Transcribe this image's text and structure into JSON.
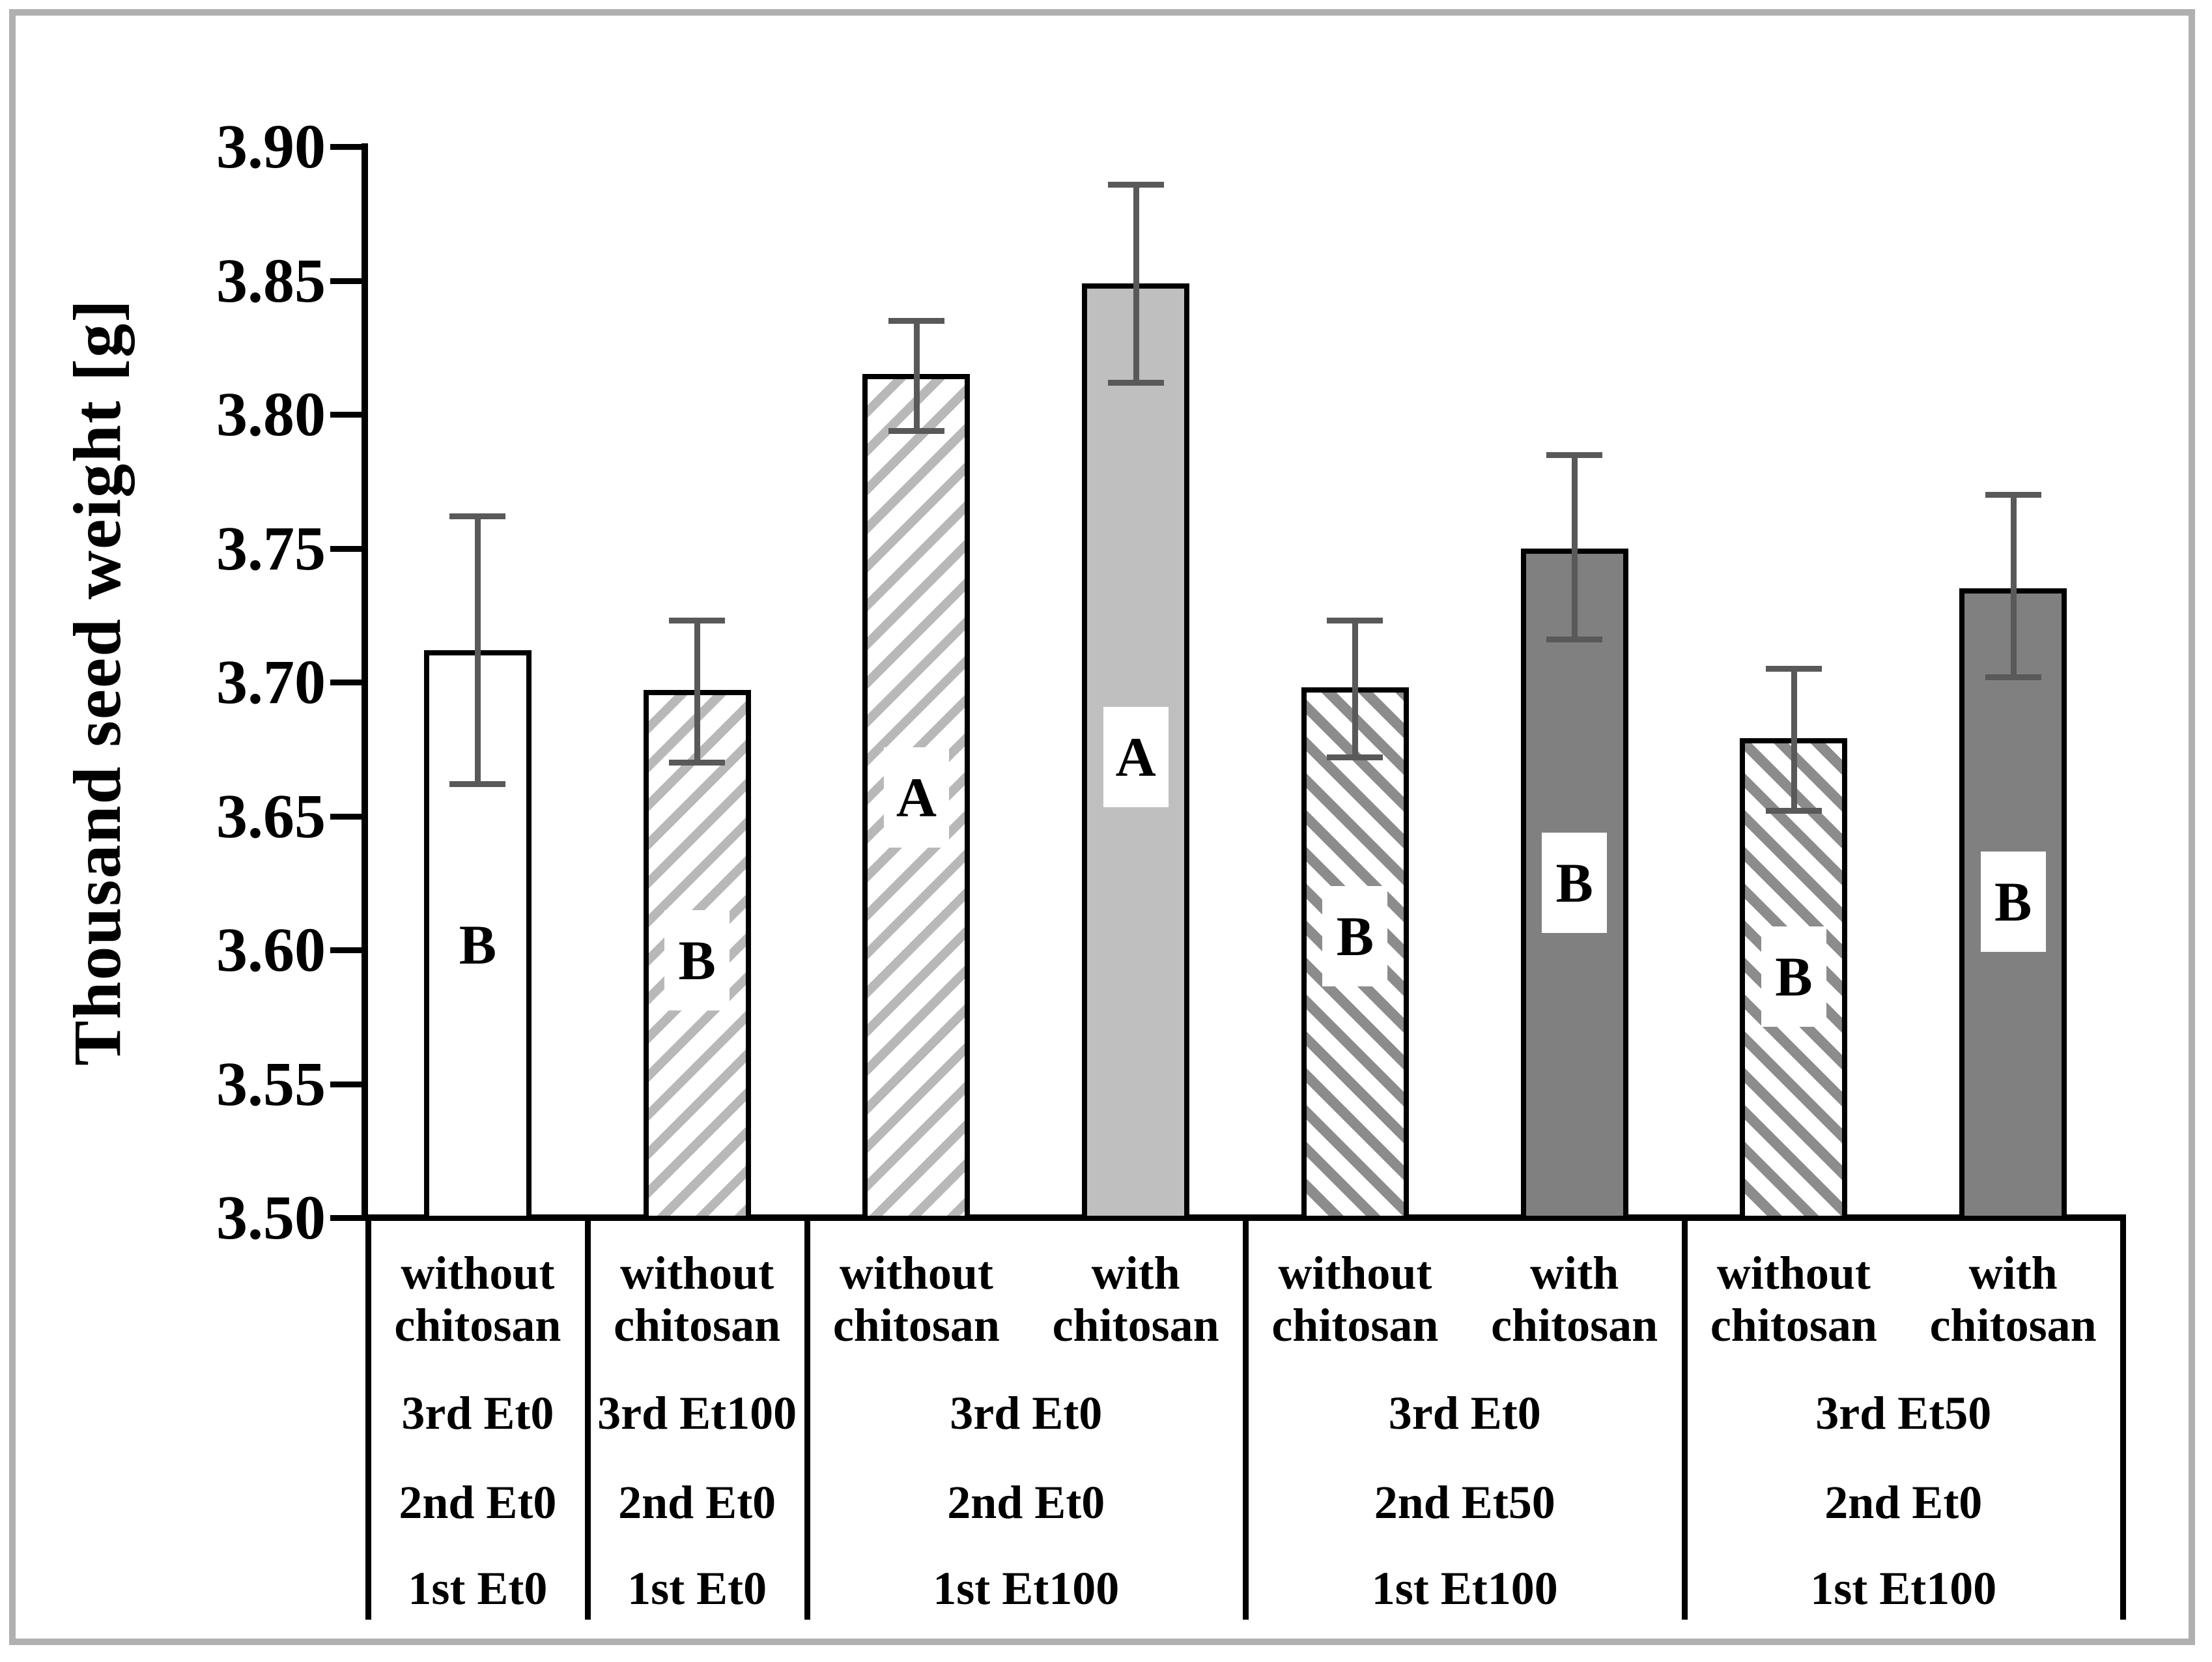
{
  "figure": {
    "background": "#ffffff",
    "border_color": "#b0b0b0"
  },
  "colors": {
    "bar_outline": "#000000",
    "bar_white": "#ffffff",
    "bar_light_gray": "#bfbfbf",
    "bar_dark_gray": "#808080",
    "hatch_light_stripe": "#b8b8b8",
    "hatch_dark_stripe": "#8c8c8c",
    "error_bar": "#595959",
    "axis": "#000000",
    "text": "#000000"
  },
  "chart_data": {
    "type": "bar",
    "title": "",
    "xlabel": "",
    "ylabel": "Thousand seed weight [g]",
    "ylim": [
      3.5,
      3.9
    ],
    "ytick_step": 0.05,
    "ytick_labels": [
      "3.90",
      "3.85",
      "3.80",
      "3.75",
      "3.70",
      "3.65",
      "3.60",
      "3.55",
      "3.50"
    ],
    "grid": false,
    "legend": false,
    "error_bars": "two-sided with caps",
    "groups": [
      {
        "chitosan_labels": [
          "without chitosan"
        ],
        "treatments": [
          "3rd Et0",
          "2nd Et0",
          "1st Et0"
        ],
        "bars": [
          {
            "condition": "without chitosan",
            "value": 3.712,
            "err_low": 3.662,
            "err_high": 3.762,
            "letter": "B",
            "letter_at": 3.602,
            "fill": "white"
          }
        ]
      },
      {
        "chitosan_labels": [
          "without chitosan"
        ],
        "treatments": [
          "3rd Et100",
          "2nd Et0",
          "1st Et0"
        ],
        "bars": [
          {
            "condition": "without chitosan",
            "value": 3.697,
            "err_low": 3.67,
            "err_high": 3.723,
            "letter": "B",
            "letter_at": 3.596,
            "fill": "hatch-light"
          }
        ]
      },
      {
        "chitosan_labels": [
          "without chitosan",
          "with chitosan"
        ],
        "treatments": [
          "3rd Et0",
          "2nd Et0",
          "1st Et100"
        ],
        "bars": [
          {
            "condition": "without chitosan",
            "value": 3.815,
            "err_low": 3.794,
            "err_high": 3.835,
            "letter": "A",
            "letter_at": 3.657,
            "fill": "hatch-light"
          },
          {
            "condition": "with chitosan",
            "value": 3.849,
            "err_low": 3.812,
            "err_high": 3.886,
            "letter": "A",
            "letter_at": 3.672,
            "fill": "gray-light"
          }
        ]
      },
      {
        "chitosan_labels": [
          "without chitosan",
          "with chitosan"
        ],
        "treatments": [
          "3rd Et0",
          "2nd Et50",
          "1st Et100"
        ],
        "bars": [
          {
            "condition": "without chitosan",
            "value": 3.698,
            "err_low": 3.672,
            "err_high": 3.723,
            "letter": "B",
            "letter_at": 3.605,
            "fill": "hatch-dark"
          },
          {
            "condition": "with chitosan",
            "value": 3.75,
            "err_low": 3.716,
            "err_high": 3.785,
            "letter": "B",
            "letter_at": 3.625,
            "fill": "gray-dark"
          }
        ]
      },
      {
        "chitosan_labels": [
          "without chitosan",
          "with chitosan"
        ],
        "treatments": [
          "3rd Et50",
          "2nd Et0",
          "1st Et100"
        ],
        "bars": [
          {
            "condition": "without chitosan",
            "value": 3.679,
            "err_low": 3.652,
            "err_high": 3.705,
            "letter": "B",
            "letter_at": 3.59,
            "fill": "hatch-dark"
          },
          {
            "condition": "with chitosan",
            "value": 3.735,
            "err_low": 3.702,
            "err_high": 3.77,
            "letter": "B",
            "letter_at": 3.618,
            "fill": "gray-dark"
          }
        ]
      }
    ]
  }
}
